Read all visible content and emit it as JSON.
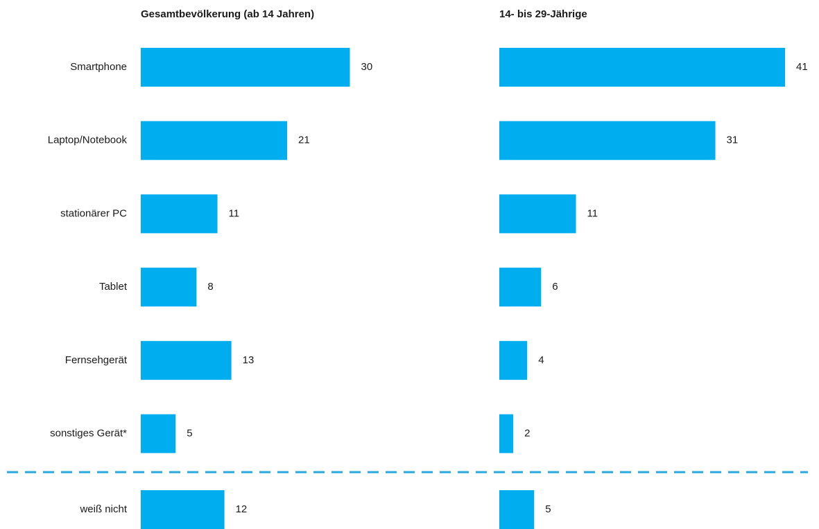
{
  "chart_data": [
    {
      "type": "bar",
      "title": "Gesamtbevölkerung (ab 14 Jahren)",
      "color": "#00adef",
      "categories": [
        "Smartphone",
        "Laptop/Notebook",
        "stationärer PC",
        "Tablet",
        "Fernsehgerät",
        "sonstiges Gerät*",
        "weiß nicht"
      ],
      "values": [
        30,
        21,
        11,
        8,
        13,
        5,
        12
      ]
    },
    {
      "type": "bar",
      "title": "14- bis 29-Jährige",
      "color": "#00adef",
      "values": [
        41,
        31,
        11,
        6,
        4,
        2,
        5
      ]
    }
  ]
}
